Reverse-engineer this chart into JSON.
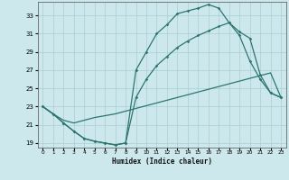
{
  "xlabel": "Humidex (Indice chaleur)",
  "xlim": [
    -0.5,
    23.5
  ],
  "ylim": [
    18.5,
    34.5
  ],
  "yticks": [
    19,
    21,
    23,
    25,
    27,
    29,
    31,
    33
  ],
  "xticks": [
    0,
    1,
    2,
    3,
    4,
    5,
    6,
    7,
    8,
    9,
    10,
    11,
    12,
    13,
    14,
    15,
    16,
    17,
    18,
    19,
    20,
    21,
    22,
    23
  ],
  "bg_color": "#cce8ec",
  "line_color": "#2d7570",
  "grid_color": "#aacdd4",
  "line1_x": [
    0,
    1,
    2,
    3,
    4,
    5,
    6,
    7,
    8,
    9,
    10,
    11,
    12,
    13,
    14,
    15,
    16,
    17,
    18,
    19,
    20,
    21,
    22,
    23
  ],
  "line1_y": [
    23.0,
    22.2,
    21.2,
    20.3,
    19.5,
    19.2,
    19.0,
    18.8,
    19.0,
    27.0,
    29.0,
    31.0,
    32.0,
    33.2,
    33.5,
    33.8,
    34.2,
    33.8,
    32.2,
    30.8,
    28.0,
    26.0,
    24.5,
    24.0
  ],
  "line2_x": [
    0,
    1,
    2,
    3,
    4,
    5,
    6,
    7,
    8,
    9,
    10,
    11,
    12,
    13,
    14,
    15,
    16,
    17,
    18,
    19,
    20,
    21,
    22,
    23
  ],
  "line2_y": [
    23.0,
    22.2,
    21.2,
    20.3,
    19.5,
    19.2,
    19.0,
    18.8,
    19.0,
    24.0,
    26.0,
    27.5,
    28.5,
    29.5,
    30.2,
    30.8,
    31.3,
    31.8,
    32.2,
    31.2,
    30.5,
    26.5,
    24.5,
    24.0
  ],
  "line3_x": [
    0,
    1,
    2,
    3,
    4,
    5,
    6,
    7,
    8,
    9,
    10,
    11,
    12,
    13,
    14,
    15,
    16,
    17,
    18,
    19,
    20,
    21,
    22,
    23
  ],
  "line3_y": [
    23.0,
    22.2,
    21.5,
    21.2,
    21.5,
    21.8,
    22.0,
    22.2,
    22.5,
    22.8,
    23.1,
    23.4,
    23.7,
    24.0,
    24.3,
    24.6,
    24.9,
    25.2,
    25.5,
    25.8,
    26.1,
    26.4,
    26.7,
    24.0
  ]
}
